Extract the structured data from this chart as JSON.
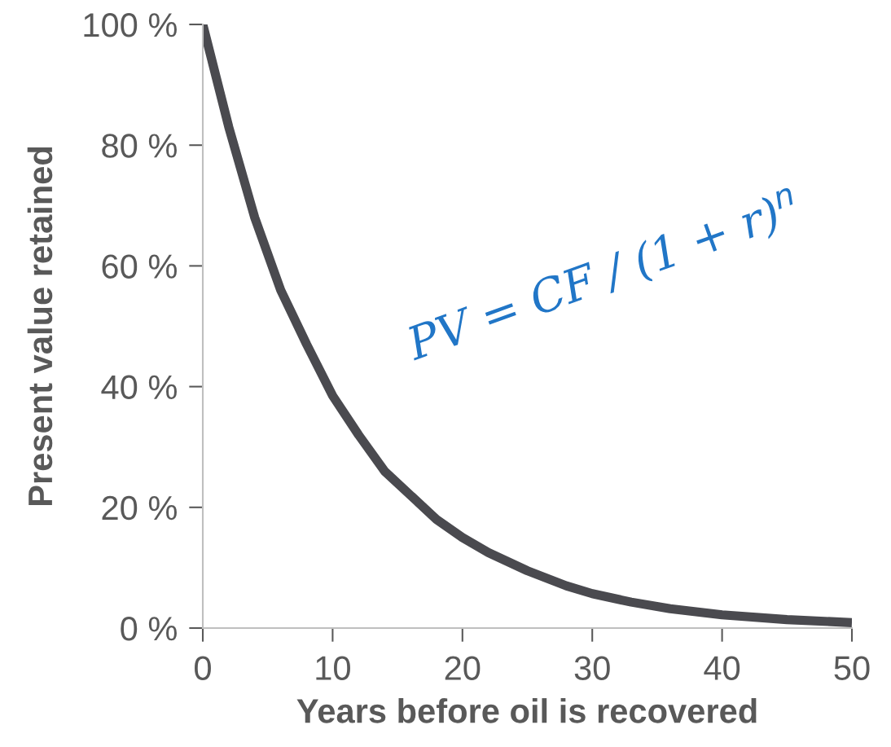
{
  "chart_data": {
    "type": "line",
    "xlabel": "Years before oil is recovered",
    "ylabel": "Present value retained",
    "x": [
      0,
      2,
      4,
      6,
      8,
      10,
      12,
      14,
      16,
      18,
      20,
      22,
      25,
      28,
      30,
      33,
      36,
      40,
      45,
      50
    ],
    "series": [
      {
        "color": "#4a4a4f",
        "values": [
          100,
          83,
          68,
          56,
          47,
          38.5,
          32,
          26,
          22,
          18,
          15,
          12.5,
          9.5,
          7,
          5.7,
          4.3,
          3.2,
          2.2,
          1.4,
          0.9
        ]
      }
    ],
    "xlim": [
      0,
      50
    ],
    "xticks": [
      0,
      10,
      20,
      30,
      40,
      50
    ],
    "ylim": [
      0,
      100
    ],
    "yticks": [
      {
        "value": 0,
        "label": "0 %"
      },
      {
        "value": 20,
        "label": "20 %"
      },
      {
        "value": 40,
        "label": "40 %"
      },
      {
        "value": 60,
        "label": "60 %"
      },
      {
        "value": 80,
        "label": "80 %"
      },
      {
        "value": 100,
        "label": "100 %"
      }
    ],
    "grid": false,
    "legend": false,
    "marker": "none",
    "line_style": "solid",
    "annotations": [
      "PV = CF / (1 + r)$^{n}$"
    ]
  }
}
